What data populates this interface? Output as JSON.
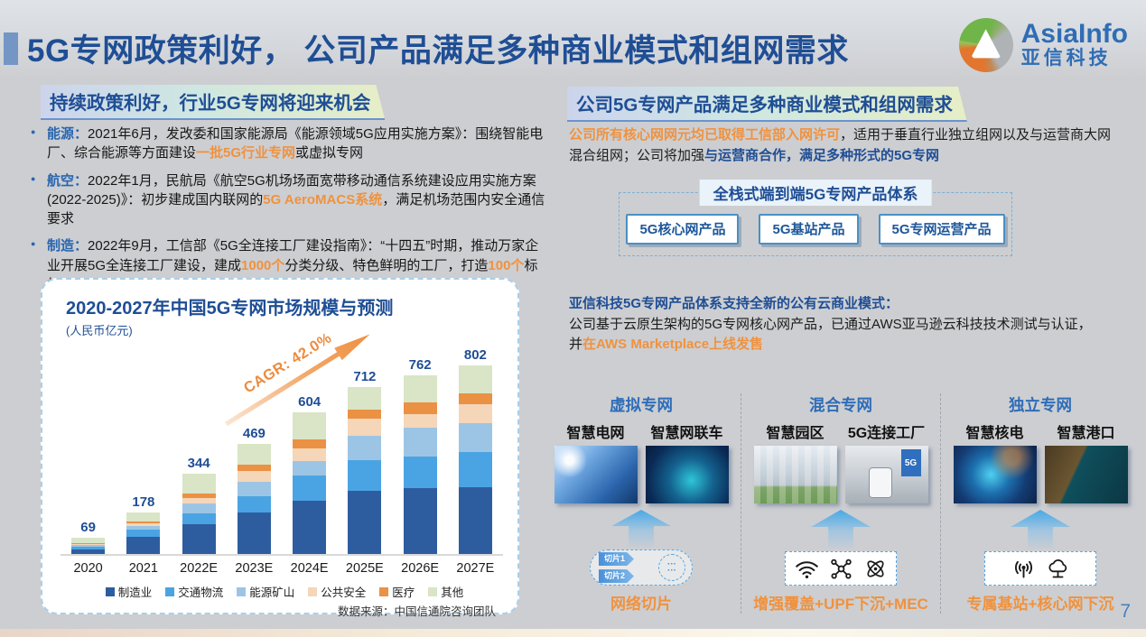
{
  "slide": {
    "title": "5G专网政策利好， 公司产品满足多种商业模式和组网需求",
    "page_number": "7",
    "logo_en": "AsiaInfo",
    "logo_cn": "亚信科技"
  },
  "colors": {
    "title_blue": "#1f4e95",
    "accent_orange": "#f0923e",
    "header_underline": "#6a93cf",
    "background_gray": "#cdced1"
  },
  "left": {
    "header": "持续政策利好，行业5G专网将迎来机会",
    "bullets": [
      {
        "label": "能源：",
        "t1": "2021年6月，发改委和国家能源局《能源领域5G应用实施方案》：围绕智能电厂、综合能源等方面建设",
        "hl": "一批5G行业专网",
        "t2": "或虚拟专网"
      },
      {
        "label": "航空：",
        "t1": "2022年1月，民航局《航空5G机场场面宽带移动通信系统建设应用实施方案(2022-2025)》：初步建成国内联网的",
        "hl": "5G AeroMACS系统",
        "t2": "，满足机场范围内安全通信要求"
      },
      {
        "label": "制造：",
        "t1": "2022年9月，工信部《5G全连接工厂建设指南》：“十四五”时期，推动万家企业开展5G全连接工厂建设，建成",
        "hl1": "1000个",
        "t2": "分类分级、特色鲜明的工厂，打造",
        "hl2": "100个",
        "t3": "标杆工厂"
      }
    ]
  },
  "right": {
    "header": "公司5G专网产品满足多种商业模式和组网需求",
    "intro": {
      "hl": "公司所有核心网网元均已取得工信部入网许可",
      "t1": "，适用于垂直行业独立组网以及与运营商大网混合组网；公司将加强",
      "em": "与运营商合作，满足多种形式的5G专网"
    },
    "product_system": {
      "title": "全栈式端到端5G专网产品体系",
      "boxes": [
        "5G核心网产品",
        "5G基站产品",
        "5G专网运营产品"
      ]
    },
    "cloud": {
      "heading": "亚信科技5G专网产品体系支持全新的公有云商业模式：",
      "line1": "公司基于云原生架构的5G专网核心网产品，已通过AWS亚马逊云科技技术测试与认证，",
      "line2_prefix": "并",
      "line2_hl": "在AWS Marketplace上线发售"
    },
    "columns": [
      {
        "header": "虚拟专网",
        "items": [
          "智慧电网",
          "智慧网联车"
        ],
        "caption": "网络切片",
        "chips": [
          "切片1",
          "切片2"
        ],
        "dots": "···"
      },
      {
        "header": "混合专网",
        "items": [
          "智慧园区",
          "5G连接工厂"
        ],
        "caption": "增强覆盖+UPF下沉+MEC",
        "icons": [
          "wifi-icon",
          "nodes-icon",
          "atom-icon"
        ]
      },
      {
        "header": "独立专网",
        "items": [
          "智慧核电",
          "智慧港口"
        ],
        "caption": "专属基站+核心网下沉",
        "icons": [
          "antenna-icon",
          "cloud-network-icon"
        ]
      }
    ]
  },
  "chart_data": {
    "type": "bar",
    "stacked": true,
    "title": "2020-2027年中国5G专网市场规模与预测",
    "subtitle": "(人民币亿元)",
    "categories": [
      "2020",
      "2021",
      "2022E",
      "2023E",
      "2024E",
      "2025E",
      "2026E",
      "2027E"
    ],
    "totals": [
      69,
      178,
      344,
      469,
      604,
      712,
      762,
      802
    ],
    "series": [
      {
        "name": "制造业",
        "color": "#2e5d9f",
        "values": [
          20,
          72,
          126,
          176,
          229,
          269,
          281,
          285
        ]
      },
      {
        "name": "交通物流",
        "color": "#4aa4e3",
        "values": [
          12,
          32,
          49,
          72,
          107,
          131,
          136,
          151
        ]
      },
      {
        "name": "能源矿山",
        "color": "#9cc5e5",
        "values": [
          7,
          17,
          39,
          59,
          60,
          105,
          120,
          123
        ]
      },
      {
        "name": "公共安全",
        "color": "#f5d6b8",
        "values": [
          5,
          12,
          26,
          46,
          55,
          72,
          60,
          78
        ]
      },
      {
        "name": "医疗",
        "color": "#eb9144",
        "values": [
          4,
          6,
          19,
          26,
          39,
          39,
          49,
          49
        ]
      },
      {
        "name": "其他",
        "color": "#d9e5c6",
        "values": [
          21,
          39,
          85,
          90,
          114,
          96,
          116,
          116
        ]
      }
    ],
    "annotation": "CAGR: 42.0%",
    "source": "数据来源：中国信通院咨询团队",
    "ylim": [
      0,
      850
    ],
    "grid": false,
    "legend_position": "bottom"
  }
}
